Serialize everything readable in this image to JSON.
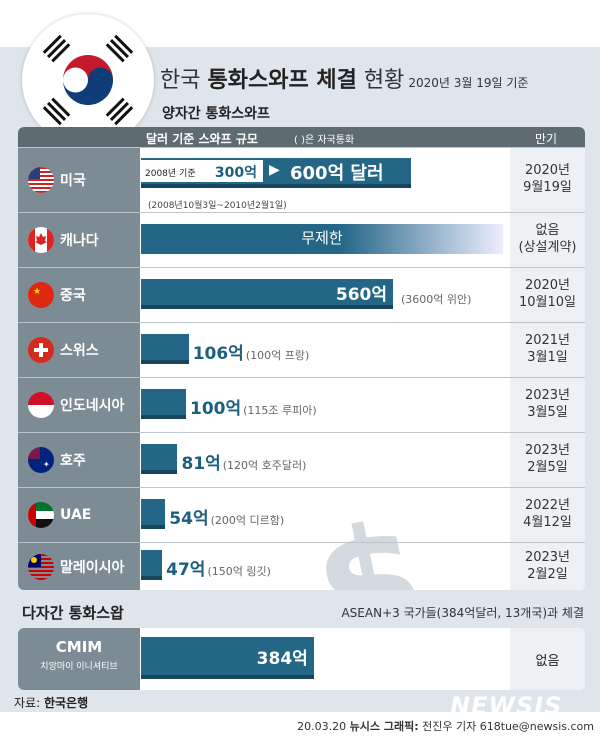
{
  "title": {
    "prefix": "한국 ",
    "bold": "통화스와프 체결",
    "suffix": " 현황",
    "date": "2020년 3월 19일 기준"
  },
  "subtitle": "양자간 통화스와프",
  "header": {
    "scale": "달러 기준 스와프 규모",
    "note": "( )은 자국통화",
    "maturity": "만기"
  },
  "watermark_glyph": "$",
  "chart_data": {
    "type": "bar",
    "orientation": "horizontal",
    "unit": "억 달러",
    "categories": [
      "미국",
      "캐나다",
      "중국",
      "스위스",
      "인도네시아",
      "호주",
      "UAE",
      "말레이시아"
    ],
    "values": [
      600,
      null,
      560,
      106,
      100,
      81,
      54,
      47
    ],
    "rows": [
      {
        "country": "미국",
        "flag": "us",
        "label": "600억 달러",
        "value": 600,
        "prev_label": "2008년 기준",
        "prev_value": "300억",
        "prev_period": "(2008년10월3일~2010년2월1일)",
        "maturity1": "2020년",
        "maturity2": "9월19일"
      },
      {
        "country": "캐나다",
        "flag": "ca",
        "label": "무제한",
        "value": null,
        "unlimited": true,
        "maturity1": "없음",
        "maturity2": "(상설계약)"
      },
      {
        "country": "중국",
        "flag": "cn",
        "label": "560억",
        "value": 560,
        "local": "(3600억 위안)",
        "maturity1": "2020년",
        "maturity2": "10월10일"
      },
      {
        "country": "스위스",
        "flag": "ch",
        "label": "106억",
        "value": 106,
        "local": "(100억 프랑)",
        "maturity1": "2021년",
        "maturity2": "3월1일"
      },
      {
        "country": "인도네시아",
        "flag": "id",
        "label": "100억",
        "value": 100,
        "local": "(115조 루피아)",
        "maturity1": "2023년",
        "maturity2": "3월5일"
      },
      {
        "country": "호주",
        "flag": "au",
        "label": "81억",
        "value": 81,
        "local": "(120억 호주달러)",
        "maturity1": "2023년",
        "maturity2": "2월5일"
      },
      {
        "country": "UAE",
        "flag": "ae",
        "label": "54억",
        "value": 54,
        "local": "(200억 디르함)",
        "maturity1": "2022년",
        "maturity2": "4월12일"
      },
      {
        "country": "말레이시아",
        "flag": "my",
        "label": "47억",
        "value": 47,
        "local": "(150억 링깃)",
        "maturity1": "2023년",
        "maturity2": "2월2일"
      }
    ],
    "multilateral": {
      "name": "CMIM",
      "subname": "치앙마이 이니셔티브",
      "label": "384억",
      "value": 384,
      "maturity": "없음"
    },
    "bar_color": "#236686"
  },
  "multi": {
    "title": "다자간 통화스왑",
    "note": "ASEAN+3 국가들(384억달러, 13개국)과 체결"
  },
  "source": {
    "label": "자료: ",
    "name": "한국은행"
  },
  "logo": "NEWSIS",
  "credit": {
    "date": "20.03.20 ",
    "org": "뉴시스 그래픽:",
    "author": " 전진우 기자 618tue@newsis.com"
  }
}
